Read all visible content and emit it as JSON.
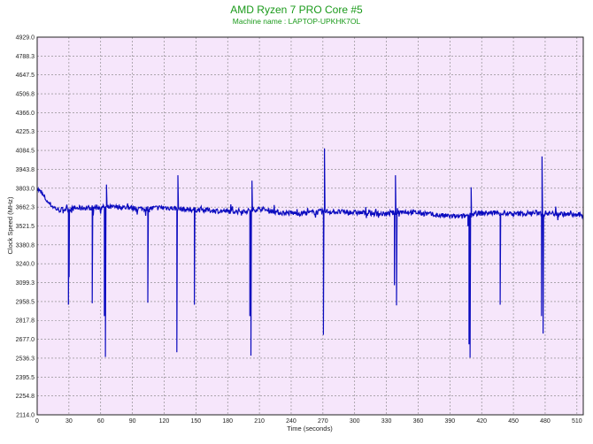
{
  "chart_data": {
    "type": "line",
    "title": "AMD Ryzen 7 PRO Core #5",
    "subtitle": "Machine name : LAPTOP-UPKHK7OL",
    "xlabel": "Time (seconds)",
    "ylabel": "Clock Speed (MHz)",
    "xlim": [
      0,
      516
    ],
    "ylim": [
      2114.0,
      4929.0
    ],
    "x_ticks": [
      "0",
      "30",
      "60",
      "90",
      "120",
      "150",
      "180",
      "210",
      "240",
      "270",
      "300",
      "330",
      "360",
      "390",
      "420",
      "450",
      "480",
      "510"
    ],
    "y_ticks": [
      "4929.0",
      "4788.3",
      "4647.5",
      "4506.8",
      "4366.0",
      "4225.3",
      "4084.5",
      "3943.8",
      "3803.0",
      "3662.3",
      "3521.5",
      "3380.8",
      "3240.0",
      "3099.3",
      "2958.5",
      "2817.8",
      "2677.0",
      "2536.3",
      "2395.5",
      "2254.8",
      "2114.0"
    ],
    "grid": true,
    "background": "#f6e6fb",
    "line_color": "#0b0bbf",
    "series": [
      {
        "baseline": [
          [
            0,
            3800
          ],
          [
            3,
            3775
          ],
          [
            6,
            3745
          ],
          [
            10,
            3700
          ],
          [
            15,
            3665
          ],
          [
            20,
            3640
          ],
          [
            30,
            3650
          ],
          [
            40,
            3655
          ],
          [
            60,
            3660
          ],
          [
            80,
            3662
          ],
          [
            100,
            3650
          ],
          [
            120,
            3660
          ],
          [
            140,
            3645
          ],
          [
            160,
            3640
          ],
          [
            180,
            3630
          ],
          [
            200,
            3635
          ],
          [
            210,
            3650
          ],
          [
            230,
            3620
          ],
          [
            250,
            3615
          ],
          [
            270,
            3630
          ],
          [
            290,
            3625
          ],
          [
            310,
            3618
          ],
          [
            330,
            3610
          ],
          [
            345,
            3630
          ],
          [
            360,
            3620
          ],
          [
            380,
            3600
          ],
          [
            400,
            3590
          ],
          [
            415,
            3615
          ],
          [
            430,
            3620
          ],
          [
            450,
            3610
          ],
          [
            470,
            3620
          ],
          [
            490,
            3615
          ],
          [
            516,
            3600
          ]
        ],
        "spikes": [
          [
            29.5,
            2935
          ],
          [
            30.2,
            3140
          ],
          [
            52,
            2945
          ],
          [
            53,
            3600
          ],
          [
            63.5,
            2850
          ],
          [
            64.5,
            2545
          ],
          [
            65.5,
            3830
          ],
          [
            104.5,
            2950
          ],
          [
            132,
            2580
          ],
          [
            133,
            3900
          ],
          [
            148.5,
            2935
          ],
          [
            201,
            2850
          ],
          [
            202,
            2555
          ],
          [
            203,
            3860
          ],
          [
            270.5,
            2710
          ],
          [
            271.5,
            4100
          ],
          [
            337.5,
            3080
          ],
          [
            338.5,
            3900
          ],
          [
            339.5,
            2930
          ],
          [
            407,
            3520
          ],
          [
            408,
            2640
          ],
          [
            409,
            2540
          ],
          [
            410,
            3810
          ],
          [
            437.5,
            2935
          ],
          [
            438,
            3620
          ],
          [
            476.5,
            2850
          ],
          [
            477,
            4040
          ],
          [
            478,
            2720
          ]
        ]
      }
    ]
  }
}
